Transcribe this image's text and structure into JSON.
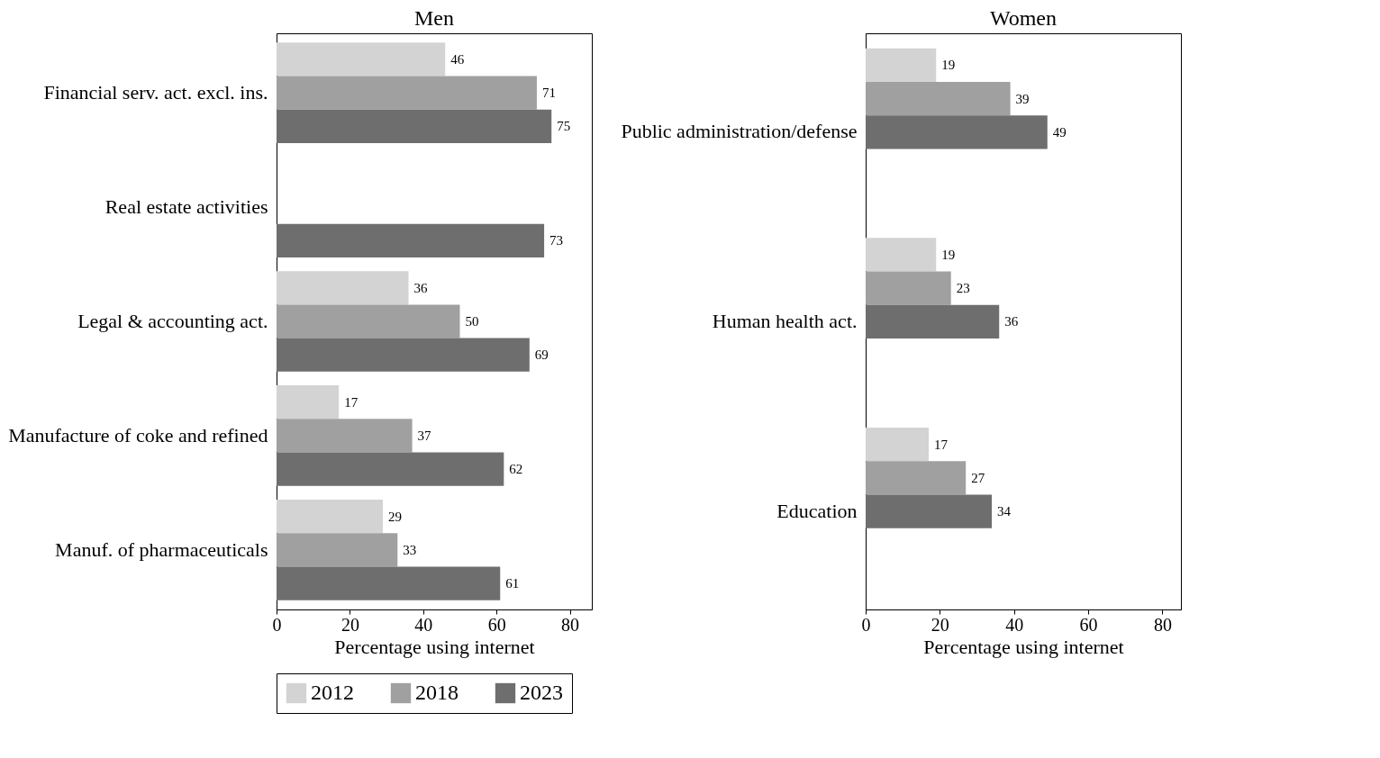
{
  "chart_data": [
    {
      "type": "bar",
      "orientation": "horizontal",
      "title": "Men",
      "xlabel": "Percentage using internet",
      "categories": [
        "Financial serv. act. excl. ins.",
        "Real estate activities",
        "Legal & accounting act.",
        "Manufacture of coke and refined",
        "Manuf. of pharmaceuticals"
      ],
      "series": [
        {
          "name": "2012",
          "color": "#d3d3d3",
          "values": [
            46,
            null,
            36,
            17,
            29
          ]
        },
        {
          "name": "2018",
          "color": "#a0a0a0",
          "values": [
            71,
            null,
            50,
            37,
            33
          ]
        },
        {
          "name": "2023",
          "color": "#6e6e6e",
          "values": [
            75,
            73,
            69,
            62,
            61
          ]
        }
      ],
      "xlim": [
        0,
        86
      ],
      "xticks": [
        0,
        20,
        40,
        60,
        80
      ],
      "data_labels": true,
      "legend": "bottom"
    },
    {
      "type": "bar",
      "orientation": "horizontal",
      "title": "Women",
      "xlabel": "Percentage using internet",
      "categories": [
        "Public administration/defense",
        "Human health act.",
        "Education"
      ],
      "series": [
        {
          "name": "2012",
          "color": "#d3d3d3",
          "values": [
            19,
            19,
            17
          ]
        },
        {
          "name": "2018",
          "color": "#a0a0a0",
          "values": [
            39,
            23,
            27
          ]
        },
        {
          "name": "2023",
          "color": "#6e6e6e",
          "values": [
            49,
            36,
            34
          ]
        }
      ],
      "xlim": [
        0,
        85
      ],
      "xticks": [
        0,
        20,
        40,
        60,
        80
      ],
      "data_labels": true,
      "legend": "bottom"
    }
  ]
}
